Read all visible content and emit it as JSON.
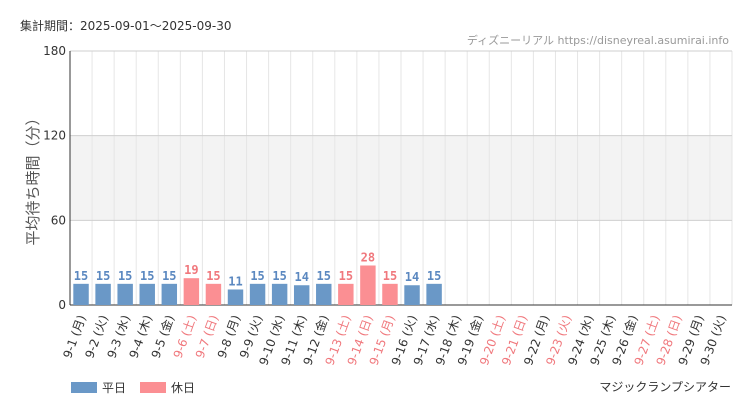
{
  "header": {
    "period": "集計期間：2025-09-01～2025-09-30",
    "credit": "ディズニーリアル https://disneyreal.asumirai.info"
  },
  "legend": {
    "weekday": "平日",
    "holiday": "休日"
  },
  "attraction": "マジックランプシアター",
  "colors": {
    "weekday": "#6a98c7",
    "holiday": "#fb8f93",
    "weekday_label": "#5b88c0",
    "holiday_label": "#f0787d",
    "band": "#f3f3f3",
    "grid": "#e6e6e6"
  },
  "chart_data": {
    "type": "bar",
    "ylabel": "平均待ち時間（分）",
    "ylim": [
      0,
      180
    ],
    "yticks": [
      0,
      60,
      120,
      180
    ],
    "categories": [
      "9-1 (月)",
      "9-2 (火)",
      "9-3 (水)",
      "9-4 (木)",
      "9-5 (金)",
      "9-6 (土)",
      "9-7 (日)",
      "9-8 (月)",
      "9-9 (火)",
      "9-10 (水)",
      "9-11 (木)",
      "9-12 (金)",
      "9-13 (土)",
      "9-14 (日)",
      "9-15 (月)",
      "9-16 (火)",
      "9-17 (水)",
      "9-18 (木)",
      "9-19 (金)",
      "9-20 (土)",
      "9-21 (日)",
      "9-22 (月)",
      "9-23 (火)",
      "9-24 (水)",
      "9-25 (木)",
      "9-26 (金)",
      "9-27 (土)",
      "9-28 (日)",
      "9-29 (月)",
      "9-30 (火)"
    ],
    "values": [
      15,
      15,
      15,
      15,
      15,
      19,
      15,
      11,
      15,
      15,
      14,
      15,
      15,
      28,
      15,
      14,
      15,
      null,
      null,
      null,
      null,
      null,
      null,
      null,
      null,
      null,
      null,
      null,
      null,
      null
    ],
    "holiday": [
      false,
      false,
      false,
      false,
      false,
      true,
      true,
      false,
      false,
      false,
      false,
      false,
      true,
      true,
      true,
      false,
      false,
      false,
      false,
      true,
      true,
      false,
      true,
      false,
      false,
      false,
      true,
      true,
      false,
      false
    ]
  }
}
